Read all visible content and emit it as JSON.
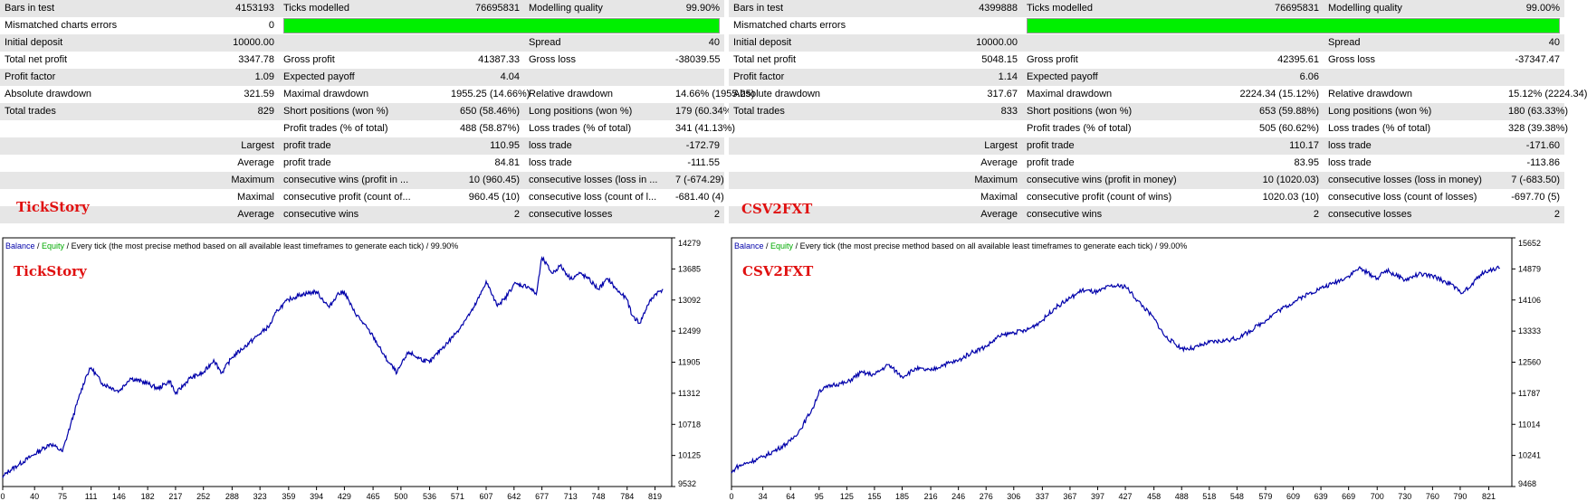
{
  "reports": [
    {
      "rows": [
        [
          "Bars in test",
          "4153193",
          "Ticks modelled",
          "76695831",
          "Modelling quality",
          "99.90%"
        ],
        [
          "Mismatched charts errors",
          "0",
          "",
          "",
          "",
          ""
        ],
        [
          "Initial deposit",
          "10000.00",
          "",
          "",
          "Spread",
          "40"
        ],
        [
          "Total net profit",
          "3347.78",
          "Gross profit",
          "41387.33",
          "Gross loss",
          "-38039.55"
        ],
        [
          "Profit factor",
          "1.09",
          "Expected payoff",
          "4.04",
          "",
          ""
        ],
        [
          "Absolute drawdown",
          "321.59",
          "Maximal drawdown",
          "1955.25 (14.66%)",
          "Relative drawdown",
          "14.66% (1955.25)"
        ],
        [
          "Total trades",
          "829",
          "Short positions (won %)",
          "650 (58.46%)",
          "Long positions (won %)",
          "179 (60.34%)"
        ],
        [
          "",
          "",
          "Profit trades (% of total)",
          "488 (58.87%)",
          "Loss trades (% of total)",
          "341 (41.13%)"
        ],
        [
          "",
          "Largest",
          "profit trade",
          "110.95",
          "loss trade",
          "-172.79"
        ],
        [
          "",
          "Average",
          "profit trade",
          "84.81",
          "loss trade",
          "-111.55"
        ],
        [
          "",
          "Maximum",
          "consecutive wins (profit in ...",
          "10 (960.45)",
          "consecutive losses (loss in ...",
          "7 (-674.29)"
        ],
        [
          "",
          "Maximal",
          "consecutive profit (count of...",
          "960.45 (10)",
          "consecutive loss (count of l...",
          "-681.40 (4)"
        ],
        [
          "",
          "Average",
          "consecutive wins",
          "2",
          "consecutive losses",
          "2"
        ]
      ],
      "tag": "TickStory",
      "chart": {
        "legend": {
          "balance": "Balance",
          "sep": " / ",
          "equity": "Equity",
          "desc": " / Every tick (the most precise method based on all available least timeframes to generate each tick) / 99.90%"
        },
        "tag": "TickStory"
      }
    },
    {
      "rows": [
        [
          "Bars in test",
          "4399888",
          "Ticks modelled",
          "76695831",
          "Modelling quality",
          "99.00%"
        ],
        [
          "Mismatched charts errors",
          "",
          "",
          "",
          "",
          ""
        ],
        [
          "Initial deposit",
          "10000.00",
          "",
          "",
          "Spread",
          "40"
        ],
        [
          "Total net profit",
          "5048.15",
          "Gross profit",
          "42395.61",
          "Gross loss",
          "-37347.47"
        ],
        [
          "Profit factor",
          "1.14",
          "Expected payoff",
          "6.06",
          "",
          ""
        ],
        [
          "Absolute drawdown",
          "317.67",
          "Maximal drawdown",
          "2224.34 (15.12%)",
          "Relative drawdown",
          "15.12% (2224.34)"
        ],
        [
          "Total trades",
          "833",
          "Short positions (won %)",
          "653 (59.88%)",
          "Long positions (won %)",
          "180 (63.33%)"
        ],
        [
          "",
          "",
          "Profit trades (% of total)",
          "505 (60.62%)",
          "Loss trades (% of total)",
          "328 (39.38%)"
        ],
        [
          "",
          "Largest",
          "profit trade",
          "110.17",
          "loss trade",
          "-171.60"
        ],
        [
          "",
          "Average",
          "profit trade",
          "83.95",
          "loss trade",
          "-113.86"
        ],
        [
          "",
          "Maximum",
          "consecutive wins (profit in money)",
          "10 (1020.03)",
          "consecutive losses (loss in money)",
          "7 (-683.50)"
        ],
        [
          "",
          "Maximal",
          "consecutive profit (count of wins)",
          "1020.03 (10)",
          "consecutive loss (count of losses)",
          "-697.70 (5)"
        ],
        [
          "",
          "Average",
          "consecutive wins",
          "2",
          "consecutive losses",
          "2"
        ]
      ],
      "tag": "CSV2FXT",
      "chart": {
        "legend": {
          "balance": "Balance",
          "sep": " / ",
          "equity": "Equity",
          "desc": " / Every tick (the most precise method based on all available least timeframes to generate each tick) / 99.00%"
        },
        "tag": "CSV2FXT"
      }
    }
  ],
  "colors": {
    "balance": "#0000aa",
    "equity": "#00aa00",
    "tag": "#e01010",
    "quality_bar": "#00f000",
    "row_shade": "#e6e6e6"
  },
  "chart_data": [
    {
      "type": "line",
      "title": "",
      "series": [
        {
          "name": "Balance",
          "x": [
            0,
            5,
            20,
            40,
            60,
            75,
            85,
            95,
            105,
            111,
            125,
            146,
            160,
            182,
            195,
            210,
            217,
            235,
            252,
            265,
            275,
            288,
            300,
            323,
            335,
            345,
            359,
            375,
            394,
            410,
            420,
            429,
            440,
            450,
            465,
            480,
            495,
            500,
            510,
            520,
            536,
            550,
            560,
            571,
            580,
            590,
            600,
            607,
            620,
            630,
            642,
            660,
            670,
            677,
            690,
            700,
            713,
            725,
            735,
            748,
            760,
            770,
            784,
            790,
            800,
            810,
            819,
            829
          ],
          "y": [
            9700,
            9800,
            9950,
            10150,
            10350,
            10200,
            10700,
            11200,
            11650,
            11800,
            11500,
            11350,
            11600,
            11500,
            11400,
            11550,
            11300,
            11600,
            11700,
            11950,
            11700,
            12000,
            12150,
            12450,
            12600,
            12900,
            13100,
            13200,
            13250,
            12950,
            13200,
            13250,
            12900,
            12700,
            12400,
            12000,
            11700,
            11850,
            12100,
            12000,
            11900,
            12150,
            12300,
            12500,
            12700,
            12900,
            13200,
            13450,
            13000,
            13100,
            13400,
            13350,
            13200,
            13900,
            13600,
            13750,
            13500,
            13600,
            13500,
            13300,
            13500,
            13300,
            13100,
            12800,
            12650,
            13000,
            13200,
            13300
          ]
        }
      ],
      "x_ticks": [
        "0",
        "40",
        "75",
        "111",
        "146",
        "182",
        "217",
        "252",
        "288",
        "323",
        "359",
        "394",
        "429",
        "465",
        "500",
        "536",
        "571",
        "607",
        "642",
        "677",
        "713",
        "748",
        "784",
        "819"
      ],
      "y_ticks": [
        "14279",
        "13685",
        "13092",
        "12499",
        "11905",
        "11312",
        "10718",
        "10125",
        "9532"
      ],
      "xlim": [
        0,
        840
      ],
      "ylim": [
        9532,
        14279
      ],
      "grid": false,
      "legend": "top-left"
    },
    {
      "type": "line",
      "title": "",
      "series": [
        {
          "name": "Balance",
          "x": [
            0,
            5,
            34,
            50,
            64,
            75,
            90,
            95,
            110,
            125,
            140,
            155,
            170,
            185,
            200,
            216,
            230,
            246,
            260,
            276,
            290,
            306,
            320,
            337,
            350,
            367,
            380,
            397,
            410,
            427,
            440,
            458,
            470,
            488,
            500,
            518,
            535,
            548,
            560,
            579,
            590,
            609,
            620,
            639,
            650,
            669,
            680,
            700,
            710,
            730,
            745,
            760,
            780,
            790,
            800,
            810,
            821,
            833
          ],
          "y": [
            9800,
            9950,
            10200,
            10400,
            10600,
            10900,
            11500,
            11850,
            12000,
            12050,
            12300,
            12250,
            12500,
            12200,
            12400,
            12350,
            12500,
            12600,
            12800,
            12950,
            13200,
            13300,
            13350,
            13600,
            13900,
            14150,
            14350,
            14300,
            14450,
            14450,
            14100,
            13650,
            13200,
            12900,
            12900,
            13050,
            13100,
            13150,
            13300,
            13600,
            13800,
            14050,
            14200,
            14400,
            14500,
            14700,
            14900,
            14650,
            14850,
            14600,
            14750,
            14700,
            14500,
            14300,
            14400,
            14700,
            14850,
            14900
          ]
        }
      ],
      "x_ticks": [
        "0",
        "34",
        "64",
        "95",
        "125",
        "155",
        "185",
        "216",
        "246",
        "276",
        "306",
        "337",
        "367",
        "397",
        "427",
        "458",
        "488",
        "518",
        "548",
        "579",
        "609",
        "639",
        "669",
        "700",
        "730",
        "760",
        "790",
        "821"
      ],
      "y_ticks": [
        "15652",
        "14879",
        "14106",
        "13333",
        "12560",
        "11787",
        "11014",
        "10241",
        "9468"
      ],
      "xlim": [
        0,
        846
      ],
      "ylim": [
        9468,
        15652
      ],
      "grid": false,
      "legend": "top-left"
    }
  ]
}
